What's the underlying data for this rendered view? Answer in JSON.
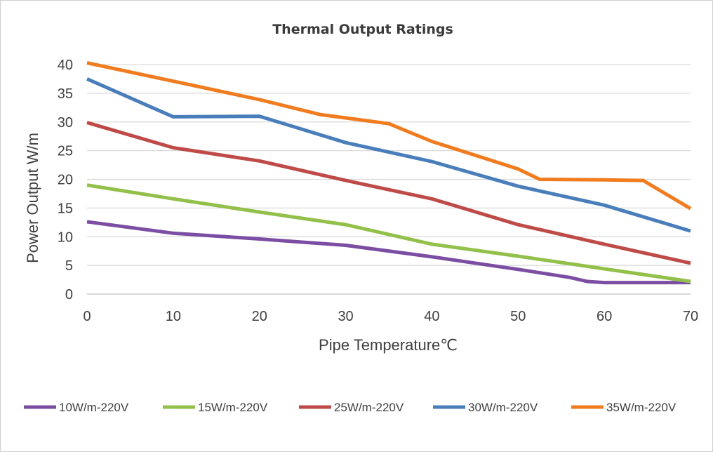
{
  "chart_data": {
    "type": "line",
    "title": "Thermal Output Ratings",
    "xlabel": "Pipe Temperature℃",
    "ylabel": "Power Output W/m",
    "xlim": [
      0,
      70
    ],
    "ylim": [
      0,
      40
    ],
    "x_ticks": [
      "0",
      "10",
      "20",
      "30",
      "40",
      "50",
      "60",
      "70"
    ],
    "y_ticks": [
      "0",
      "5",
      "10",
      "15",
      "20",
      "25",
      "30",
      "35",
      "40"
    ],
    "grid": "horizontal",
    "legend_position": "bottom",
    "series": [
      {
        "name": "10W/m-220V",
        "color": "#7b4ea3",
        "points": [
          [
            0,
            12.6
          ],
          [
            10,
            10.6
          ],
          [
            20,
            9.6
          ],
          [
            30,
            8.5
          ],
          [
            40,
            6.5
          ],
          [
            50,
            4.3
          ],
          [
            56,
            2.9
          ],
          [
            58,
            2.2
          ],
          [
            60,
            2.0
          ],
          [
            70,
            2.0
          ]
        ]
      },
      {
        "name": "15W/m-220V",
        "color": "#92c04a",
        "points": [
          [
            0,
            19.0
          ],
          [
            10,
            16.6
          ],
          [
            20,
            14.3
          ],
          [
            30,
            12.1
          ],
          [
            40,
            8.7
          ],
          [
            50,
            6.6
          ],
          [
            60,
            4.4
          ],
          [
            70,
            2.2
          ]
        ]
      },
      {
        "name": "25W/m-220V",
        "color": "#be4b48",
        "points": [
          [
            0,
            29.9
          ],
          [
            10,
            25.5
          ],
          [
            20,
            23.2
          ],
          [
            30,
            19.8
          ],
          [
            40,
            16.6
          ],
          [
            50,
            12.1
          ],
          [
            60,
            8.7
          ],
          [
            70,
            5.4
          ]
        ]
      },
      {
        "name": "30W/m-220V",
        "color": "#4a7ebb",
        "points": [
          [
            0,
            37.5
          ],
          [
            10,
            30.9
          ],
          [
            20,
            31.0
          ],
          [
            30,
            26.4
          ],
          [
            40,
            23.1
          ],
          [
            50,
            18.8
          ],
          [
            60,
            15.5
          ],
          [
            70,
            11.0
          ]
        ]
      },
      {
        "name": "35W/m-220V",
        "color": "#f07c1f",
        "points": [
          [
            0,
            40.3
          ],
          [
            10,
            37.1
          ],
          [
            20,
            33.9
          ],
          [
            27,
            31.3
          ],
          [
            35,
            29.7
          ],
          [
            40,
            26.6
          ],
          [
            50,
            21.8
          ],
          [
            52.5,
            20.0
          ],
          [
            60,
            19.9
          ],
          [
            64.5,
            19.8
          ],
          [
            70,
            14.9
          ]
        ]
      }
    ]
  }
}
